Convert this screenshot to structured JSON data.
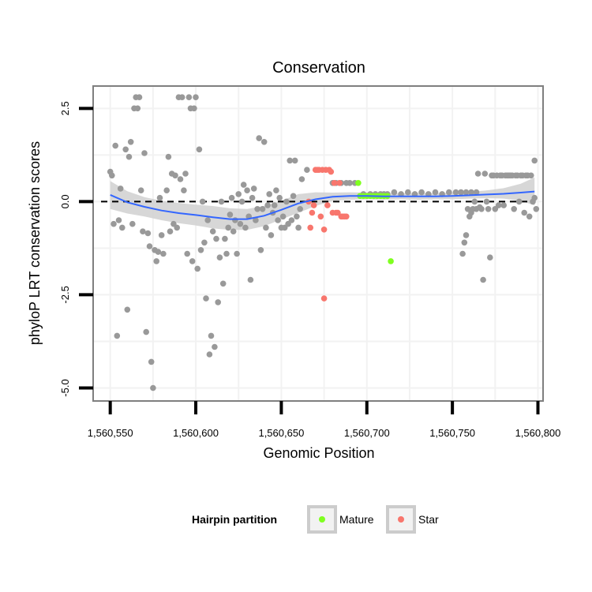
{
  "chart_data": {
    "type": "scatter",
    "title": "Conservation",
    "xlabel": "Genomic Position",
    "ylabel": "phyloP LRT conservation scores",
    "xlim": [
      1560540,
      1560803
    ],
    "ylim": [
      -5.35,
      3.1
    ],
    "x_ticks": [
      1560550,
      1560600,
      1560650,
      1560700,
      1560750,
      1560800
    ],
    "x_tick_labels": [
      "1,560,550",
      "1,560,600",
      "1,560,650",
      "1,560,700",
      "1,560,750",
      "1,560,800"
    ],
    "y_ticks": [
      -5.0,
      -2.5,
      0.0,
      2.5
    ],
    "y_tick_labels": [
      "-5.0",
      "-2.5",
      "0.0",
      "2.5"
    ],
    "reference_line_y": 0,
    "legend": {
      "title": "Hairpin partition",
      "entries": [
        {
          "label": "Mature",
          "color": "#7FFF1F"
        },
        {
          "label": "Star",
          "color": "#F8766D"
        }
      ],
      "position": "bottom"
    },
    "colors": {
      "other": "#999999",
      "mature": "#7FFF1F",
      "star": "#F8766D",
      "smooth": "#3366FF",
      "ribbon": "#D0D0D0"
    },
    "series": [
      {
        "name": "Other",
        "points": [
          [
            1560550,
            0.8
          ],
          [
            1560551,
            0.7
          ],
          [
            1560552,
            -0.6
          ],
          [
            1560553,
            1.5
          ],
          [
            1560554,
            -3.6
          ],
          [
            1560555,
            -0.5
          ],
          [
            1560556,
            0.35
          ],
          [
            1560557,
            -0.7
          ],
          [
            1560559,
            1.4
          ],
          [
            1560560,
            -2.9
          ],
          [
            1560561,
            1.2
          ],
          [
            1560562,
            1.6
          ],
          [
            1560563,
            -0.6
          ],
          [
            1560564,
            2.5
          ],
          [
            1560565,
            2.8
          ],
          [
            1560566,
            2.5
          ],
          [
            1560567,
            2.8
          ],
          [
            1560568,
            0.3
          ],
          [
            1560569,
            -0.8
          ],
          [
            1560570,
            1.3
          ],
          [
            1560571,
            -3.5
          ],
          [
            1560572,
            -0.85
          ],
          [
            1560573,
            -1.2
          ],
          [
            1560574,
            -4.3
          ],
          [
            1560575,
            -5.0
          ],
          [
            1560576,
            -1.3
          ],
          [
            1560577,
            -1.6
          ],
          [
            1560578,
            -1.35
          ],
          [
            1560579,
            0.1
          ],
          [
            1560580,
            -0.9
          ],
          [
            1560581,
            -1.4
          ],
          [
            1560583,
            0.3
          ],
          [
            1560584,
            1.2
          ],
          [
            1560585,
            -0.8
          ],
          [
            1560586,
            0.75
          ],
          [
            1560587,
            -0.6
          ],
          [
            1560588,
            0.7
          ],
          [
            1560589,
            -0.7
          ],
          [
            1560590,
            2.8
          ],
          [
            1560591,
            0.6
          ],
          [
            1560592,
            2.8
          ],
          [
            1560593,
            0.3
          ],
          [
            1560594,
            0.75
          ],
          [
            1560595,
            -1.4
          ],
          [
            1560596,
            2.8
          ],
          [
            1560597,
            2.5
          ],
          [
            1560598,
            -1.6
          ],
          [
            1560599,
            2.5
          ],
          [
            1560600,
            2.8
          ],
          [
            1560601,
            -1.8
          ],
          [
            1560602,
            1.4
          ],
          [
            1560603,
            -1.3
          ],
          [
            1560604,
            0.0
          ],
          [
            1560605,
            -1.1
          ],
          [
            1560606,
            -2.6
          ],
          [
            1560607,
            -0.5
          ],
          [
            1560608,
            -4.1
          ],
          [
            1560609,
            -3.6
          ],
          [
            1560610,
            -0.8
          ],
          [
            1560611,
            -3.9
          ],
          [
            1560612,
            -1.0
          ],
          [
            1560613,
            -2.7
          ],
          [
            1560614,
            -1.5
          ],
          [
            1560615,
            0.0
          ],
          [
            1560616,
            -2.2
          ],
          [
            1560617,
            -1.0
          ],
          [
            1560618,
            -1.4
          ],
          [
            1560619,
            -0.7
          ],
          [
            1560620,
            -0.35
          ],
          [
            1560621,
            0.1
          ],
          [
            1560622,
            -0.8
          ],
          [
            1560623,
            -0.5
          ],
          [
            1560624,
            -1.4
          ],
          [
            1560625,
            0.2
          ],
          [
            1560626,
            -0.6
          ],
          [
            1560627,
            0.0
          ],
          [
            1560628,
            0.45
          ],
          [
            1560629,
            -0.7
          ],
          [
            1560630,
            0.3
          ],
          [
            1560631,
            -0.4
          ],
          [
            1560632,
            -2.1
          ],
          [
            1560633,
            0.1
          ],
          [
            1560634,
            0.35
          ],
          [
            1560635,
            -0.5
          ],
          [
            1560636,
            -0.2
          ],
          [
            1560637,
            1.7
          ],
          [
            1560638,
            -1.3
          ],
          [
            1560639,
            -0.2
          ],
          [
            1560640,
            1.6
          ],
          [
            1560641,
            -0.7
          ],
          [
            1560642,
            -0.1
          ],
          [
            1560643,
            0.2
          ],
          [
            1560644,
            -0.9
          ],
          [
            1560645,
            -0.3
          ],
          [
            1560646,
            -0.1
          ],
          [
            1560647,
            0.3
          ],
          [
            1560648,
            -0.5
          ],
          [
            1560649,
            0.1
          ],
          [
            1560650,
            -0.7
          ],
          [
            1560651,
            -0.4
          ],
          [
            1560652,
            -0.7
          ],
          [
            1560653,
            0.0
          ],
          [
            1560654,
            -0.6
          ],
          [
            1560655,
            1.1
          ],
          [
            1560656,
            -0.5
          ],
          [
            1560657,
            0.15
          ],
          [
            1560658,
            1.1
          ],
          [
            1560659,
            -0.4
          ],
          [
            1560660,
            -0.7
          ],
          [
            1560661,
            -0.2
          ],
          [
            1560662,
            0.6
          ],
          [
            1560665,
            0.85
          ],
          [
            1560680,
            0.5
          ],
          [
            1560682,
            0.5
          ],
          [
            1560685,
            0.5
          ],
          [
            1560688,
            0.5
          ],
          [
            1560690,
            0.5
          ],
          [
            1560693,
            0.5
          ],
          [
            1560698,
            0.2
          ],
          [
            1560702,
            0.2
          ],
          [
            1560705,
            0.2
          ],
          [
            1560708,
            0.2
          ],
          [
            1560710,
            0.2
          ],
          [
            1560712,
            0.2
          ],
          [
            1560716,
            0.25
          ],
          [
            1560720,
            0.2
          ],
          [
            1560724,
            0.25
          ],
          [
            1560728,
            0.2
          ],
          [
            1560732,
            0.25
          ],
          [
            1560736,
            0.2
          ],
          [
            1560740,
            0.25
          ],
          [
            1560744,
            0.2
          ],
          [
            1560748,
            0.25
          ],
          [
            1560752,
            0.25
          ],
          [
            1560755,
            0.25
          ],
          [
            1560758,
            0.25
          ],
          [
            1560761,
            0.25
          ],
          [
            1560764,
            0.25
          ],
          [
            1560756,
            -1.4
          ],
          [
            1560757,
            -1.1
          ],
          [
            1560758,
            -0.9
          ],
          [
            1560759,
            -0.2
          ],
          [
            1560760,
            -0.4
          ],
          [
            1560761,
            -0.3
          ],
          [
            1560762,
            -0.2
          ],
          [
            1560763,
            0.0
          ],
          [
            1560764,
            -0.2
          ],
          [
            1560765,
            0.75
          ],
          [
            1560766,
            -0.15
          ],
          [
            1560767,
            -0.2
          ],
          [
            1560768,
            -2.1
          ],
          [
            1560769,
            0.75
          ],
          [
            1560770,
            0.0
          ],
          [
            1560771,
            -0.2
          ],
          [
            1560772,
            -1.5
          ],
          [
            1560773,
            0.7
          ],
          [
            1560774,
            0.7
          ],
          [
            1560775,
            -0.2
          ],
          [
            1560776,
            0.7
          ],
          [
            1560777,
            -0.1
          ],
          [
            1560778,
            0.7
          ],
          [
            1560779,
            0.7
          ],
          [
            1560780,
            -0.1
          ],
          [
            1560781,
            0.7
          ],
          [
            1560782,
            0.7
          ],
          [
            1560783,
            0.7
          ],
          [
            1560784,
            0.7
          ],
          [
            1560785,
            0.7
          ],
          [
            1560786,
            -0.2
          ],
          [
            1560787,
            0.7
          ],
          [
            1560788,
            0.7
          ],
          [
            1560789,
            0.0
          ],
          [
            1560790,
            0.7
          ],
          [
            1560791,
            0.7
          ],
          [
            1560792,
            -0.3
          ],
          [
            1560793,
            0.7
          ],
          [
            1560794,
            0.7
          ],
          [
            1560795,
            -0.4
          ],
          [
            1560796,
            0.7
          ],
          [
            1560797,
            0.0
          ],
          [
            1560798,
            1.1
          ],
          [
            1560798,
            0.1
          ],
          [
            1560799,
            -0.2
          ]
        ]
      },
      {
        "name": "Mature",
        "points": [
          [
            1560695,
            0.5
          ],
          [
            1560696,
            0.15
          ],
          [
            1560698,
            0.15
          ],
          [
            1560700,
            0.15
          ],
          [
            1560702,
            0.15
          ],
          [
            1560704,
            0.15
          ],
          [
            1560706,
            0.15
          ],
          [
            1560708,
            0.15
          ],
          [
            1560710,
            0.15
          ],
          [
            1560712,
            0.15
          ],
          [
            1560714,
            -1.6
          ]
        ]
      },
      {
        "name": "Star",
        "points": [
          [
            1560666,
            0.0
          ],
          [
            1560667,
            -0.7
          ],
          [
            1560668,
            -0.3
          ],
          [
            1560669,
            -0.1
          ],
          [
            1560670,
            0.85
          ],
          [
            1560671,
            0.85
          ],
          [
            1560672,
            0.85
          ],
          [
            1560673,
            -0.4
          ],
          [
            1560674,
            0.85
          ],
          [
            1560675,
            -0.75
          ],
          [
            1560675,
            -2.6
          ],
          [
            1560676,
            0.85
          ],
          [
            1560677,
            -0.1
          ],
          [
            1560678,
            0.85
          ],
          [
            1560679,
            0.8
          ],
          [
            1560680,
            -0.3
          ],
          [
            1560681,
            0.5
          ],
          [
            1560682,
            -0.3
          ],
          [
            1560683,
            -0.3
          ],
          [
            1560684,
            0.5
          ],
          [
            1560685,
            -0.4
          ],
          [
            1560686,
            -0.4
          ],
          [
            1560687,
            -0.4
          ],
          [
            1560688,
            -0.4
          ]
        ]
      }
    ],
    "smooth": {
      "x": [
        1560550,
        1560560,
        1560570,
        1560580,
        1560590,
        1560600,
        1560610,
        1560620,
        1560630,
        1560640,
        1560650,
        1560660,
        1560670,
        1560680,
        1560690,
        1560700,
        1560710,
        1560720,
        1560730,
        1560740,
        1560750,
        1560760,
        1560770,
        1560780,
        1560790,
        1560798
      ],
      "y": [
        0.18,
        -0.02,
        -0.14,
        -0.24,
        -0.31,
        -0.36,
        -0.42,
        -0.47,
        -0.47,
        -0.38,
        -0.22,
        -0.05,
        0.06,
        0.13,
        0.15,
        0.15,
        0.14,
        0.14,
        0.14,
        0.14,
        0.15,
        0.17,
        0.19,
        0.21,
        0.24,
        0.27
      ],
      "lower": [
        -0.2,
        -0.32,
        -0.4,
        -0.5,
        -0.58,
        -0.64,
        -0.72,
        -0.76,
        -0.76,
        -0.66,
        -0.48,
        -0.3,
        -0.12,
        0.02,
        0.05,
        0.06,
        0.05,
        0.06,
        0.05,
        0.06,
        0.06,
        0.08,
        0.09,
        0.08,
        0.02,
        -0.1
      ],
      "upper": [
        0.55,
        0.28,
        0.12,
        0.02,
        -0.04,
        -0.08,
        -0.12,
        -0.18,
        -0.2,
        -0.12,
        0.02,
        0.2,
        0.25,
        0.24,
        0.25,
        0.24,
        0.23,
        0.22,
        0.23,
        0.22,
        0.24,
        0.26,
        0.3,
        0.36,
        0.48,
        0.65
      ]
    }
  }
}
